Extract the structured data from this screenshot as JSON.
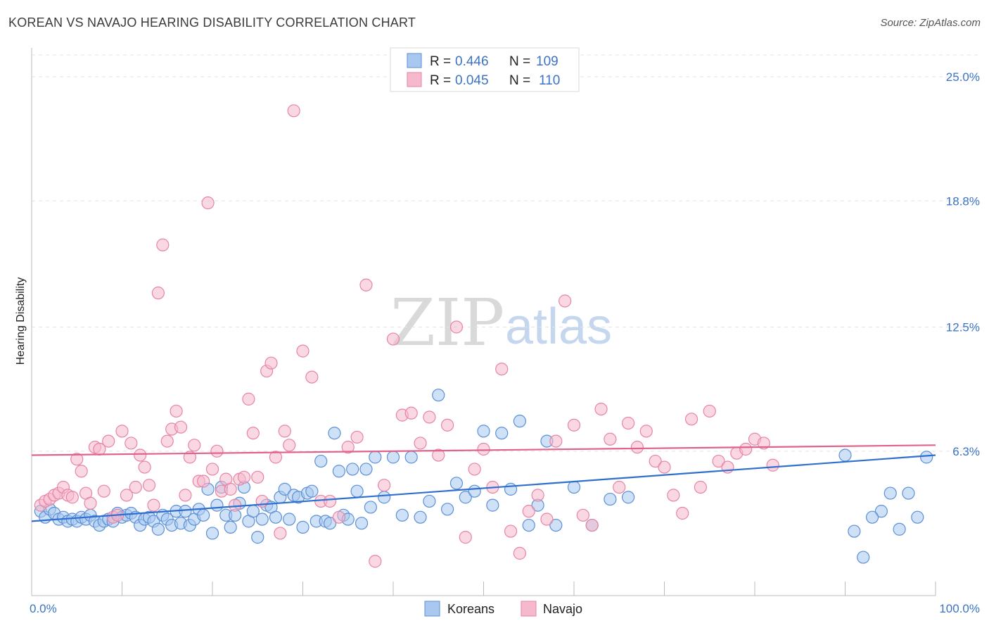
{
  "header": {
    "title": "KOREAN VS NAVAJO HEARING DISABILITY CORRELATION CHART",
    "source": "Source: ZipAtlas.com"
  },
  "watermark": {
    "zip": "ZIP",
    "atlas": "atlas"
  },
  "legend_top": [
    {
      "r_label": "R = ",
      "r_value": "0.446",
      "n_label": "N = ",
      "n_value": "109",
      "color": "#a8c8f0"
    },
    {
      "r_label": "R = ",
      "r_value": "0.045",
      "n_label": "N = ",
      "n_value": "110",
      "color": "#f5b8cc"
    }
  ],
  "colors": {
    "koreans_fill": "#a8c8f0",
    "koreans_stroke": "#5b8fd6",
    "koreans_line": "#2f6fcf",
    "navajo_fill": "#f5b8cc",
    "navajo_stroke": "#e784a4",
    "navajo_line": "#e0628c",
    "tick_label": "#3b73c6"
  },
  "chart_data": {
    "type": "scatter",
    "title": "KOREAN VS NAVAJO HEARING DISABILITY CORRELATION CHART",
    "xlabel": "",
    "ylabel": "Hearing Disability",
    "xlim": [
      0,
      100
    ],
    "ylim": [
      0,
      26.3
    ],
    "x_tick_labels": [
      {
        "value": 0,
        "label": "0.0%"
      },
      {
        "value": 100,
        "label": "100.0%"
      }
    ],
    "y_tick_labels": [
      {
        "value": 6.3,
        "label": "6.3%"
      },
      {
        "value": 12.5,
        "label": "12.5%"
      },
      {
        "value": 18.8,
        "label": "18.8%"
      },
      {
        "value": 25.0,
        "label": "25.0%"
      }
    ],
    "grid": true,
    "legend_position": "top-center",
    "series": [
      {
        "name": "Koreans",
        "trend": [
          [
            0,
            2.8
          ],
          [
            100,
            6.1
          ]
        ],
        "points": [
          [
            1,
            3.3
          ],
          [
            1.5,
            3.0
          ],
          [
            2,
            3.4
          ],
          [
            2.5,
            3.2
          ],
          [
            3,
            2.9
          ],
          [
            3.5,
            3.0
          ],
          [
            4,
            2.8
          ],
          [
            4.5,
            2.9
          ],
          [
            5,
            2.8
          ],
          [
            5.5,
            3.0
          ],
          [
            6,
            2.9
          ],
          [
            6.5,
            3.1
          ],
          [
            7,
            2.8
          ],
          [
            7.5,
            2.6
          ],
          [
            8,
            2.8
          ],
          [
            8.5,
            2.9
          ],
          [
            9,
            2.8
          ],
          [
            9.5,
            3.2
          ],
          [
            10,
            3.0
          ],
          [
            10.5,
            3.1
          ],
          [
            11,
            3.2
          ],
          [
            11.5,
            3.0
          ],
          [
            12,
            2.6
          ],
          [
            12.5,
            2.9
          ],
          [
            13,
            3.0
          ],
          [
            13.5,
            2.8
          ],
          [
            14,
            2.4
          ],
          [
            14.5,
            3.1
          ],
          [
            15,
            2.9
          ],
          [
            15.5,
            2.6
          ],
          [
            16,
            3.3
          ],
          [
            16.5,
            2.7
          ],
          [
            17,
            3.3
          ],
          [
            17.5,
            2.6
          ],
          [
            18,
            2.9
          ],
          [
            18.5,
            3.4
          ],
          [
            19,
            3.1
          ],
          [
            19.5,
            4.4
          ],
          [
            20,
            2.2
          ],
          [
            20.5,
            3.6
          ],
          [
            21,
            4.5
          ],
          [
            21.5,
            3.1
          ],
          [
            22,
            2.5
          ],
          [
            22.5,
            3.1
          ],
          [
            23,
            3.7
          ],
          [
            23.5,
            4.5
          ],
          [
            24,
            2.8
          ],
          [
            24.5,
            3.3
          ],
          [
            25,
            2.0
          ],
          [
            25.5,
            2.9
          ],
          [
            26,
            3.6
          ],
          [
            26.5,
            3.5
          ],
          [
            27,
            3.0
          ],
          [
            27.5,
            4.0
          ],
          [
            28,
            4.4
          ],
          [
            28.5,
            2.9
          ],
          [
            29,
            4.1
          ],
          [
            29.5,
            4.0
          ],
          [
            30,
            2.5
          ],
          [
            30.5,
            4.2
          ],
          [
            31,
            4.3
          ],
          [
            31.5,
            2.8
          ],
          [
            32,
            5.8
          ],
          [
            32.5,
            2.8
          ],
          [
            33,
            2.7
          ],
          [
            33.5,
            7.2
          ],
          [
            34,
            5.3
          ],
          [
            34.5,
            3.1
          ],
          [
            35,
            2.9
          ],
          [
            35.5,
            5.4
          ],
          [
            36,
            4.3
          ],
          [
            36.5,
            2.7
          ],
          [
            37,
            5.4
          ],
          [
            37.5,
            3.5
          ],
          [
            38,
            6.0
          ],
          [
            39,
            4.0
          ],
          [
            40,
            6.0
          ],
          [
            41,
            3.1
          ],
          [
            42,
            6.0
          ],
          [
            43,
            3.0
          ],
          [
            44,
            3.8
          ],
          [
            45,
            9.1
          ],
          [
            46,
            3.4
          ],
          [
            47,
            4.7
          ],
          [
            48,
            4.0
          ],
          [
            49,
            4.3
          ],
          [
            50,
            7.3
          ],
          [
            51,
            3.6
          ],
          [
            52,
            7.2
          ],
          [
            53,
            4.4
          ],
          [
            54,
            7.8
          ],
          [
            55,
            2.6
          ],
          [
            56,
            3.6
          ],
          [
            57,
            6.8
          ],
          [
            58,
            2.6
          ],
          [
            60,
            4.5
          ],
          [
            62,
            2.6
          ],
          [
            64,
            3.9
          ],
          [
            66,
            4.0
          ],
          [
            90,
            6.1
          ],
          [
            92,
            1.0
          ],
          [
            94,
            3.3
          ],
          [
            96,
            2.4
          ],
          [
            98,
            3.0
          ],
          [
            99,
            6.0
          ],
          [
            97,
            4.2
          ],
          [
            95,
            4.2
          ],
          [
            93,
            3.0
          ],
          [
            91,
            2.3
          ]
        ]
      },
      {
        "name": "Navajo",
        "trend": [
          [
            0,
            6.1
          ],
          [
            100,
            6.6
          ]
        ],
        "points": [
          [
            1,
            3.6
          ],
          [
            1.5,
            3.8
          ],
          [
            2,
            3.9
          ],
          [
            2.5,
            4.1
          ],
          [
            3,
            4.2
          ],
          [
            3.5,
            4.5
          ],
          [
            4,
            4.1
          ],
          [
            4.5,
            4.0
          ],
          [
            5,
            5.9
          ],
          [
            5.5,
            5.3
          ],
          [
            6,
            4.2
          ],
          [
            6.5,
            3.7
          ],
          [
            7,
            6.5
          ],
          [
            7.5,
            6.4
          ],
          [
            8,
            4.3
          ],
          [
            8.5,
            6.8
          ],
          [
            9,
            3.0
          ],
          [
            9.5,
            3.1
          ],
          [
            10,
            7.3
          ],
          [
            10.5,
            4.1
          ],
          [
            11,
            6.7
          ],
          [
            11.5,
            4.5
          ],
          [
            12,
            6.1
          ],
          [
            12.5,
            5.5
          ],
          [
            13,
            4.6
          ],
          [
            13.5,
            3.6
          ],
          [
            14,
            14.2
          ],
          [
            14.5,
            16.6
          ],
          [
            15,
            6.8
          ],
          [
            15.5,
            7.4
          ],
          [
            16,
            8.3
          ],
          [
            16.5,
            7.5
          ],
          [
            17,
            4.1
          ],
          [
            17.5,
            6.0
          ],
          [
            18,
            6.6
          ],
          [
            18.5,
            4.8
          ],
          [
            19,
            4.8
          ],
          [
            19.5,
            18.7
          ],
          [
            20,
            5.4
          ],
          [
            20.5,
            6.3
          ],
          [
            21,
            4.3
          ],
          [
            21.5,
            4.9
          ],
          [
            22,
            4.4
          ],
          [
            22.5,
            3.6
          ],
          [
            23,
            4.9
          ],
          [
            23.5,
            5.0
          ],
          [
            24,
            8.9
          ],
          [
            24.5,
            7.2
          ],
          [
            25,
            5.0
          ],
          [
            25.5,
            3.8
          ],
          [
            26,
            10.3
          ],
          [
            26.5,
            10.7
          ],
          [
            27,
            6.0
          ],
          [
            27.5,
            2.2
          ],
          [
            28,
            7.3
          ],
          [
            28.5,
            6.6
          ],
          [
            29,
            23.3
          ],
          [
            30,
            11.3
          ],
          [
            31,
            10.0
          ],
          [
            32,
            3.8
          ],
          [
            33,
            3.8
          ],
          [
            34,
            3.0
          ],
          [
            35,
            6.5
          ],
          [
            36,
            7.0
          ],
          [
            37,
            14.6
          ],
          [
            38,
            0.8
          ],
          [
            39,
            4.6
          ],
          [
            40,
            11.9
          ],
          [
            41,
            8.1
          ],
          [
            42,
            8.2
          ],
          [
            43,
            6.7
          ],
          [
            44,
            8.0
          ],
          [
            45,
            6.1
          ],
          [
            46,
            7.6
          ],
          [
            47,
            12.5
          ],
          [
            48,
            2.0
          ],
          [
            49,
            5.4
          ],
          [
            50,
            6.4
          ],
          [
            51,
            4.5
          ],
          [
            52,
            10.4
          ],
          [
            53,
            2.3
          ],
          [
            54,
            1.2
          ],
          [
            55,
            3.3
          ],
          [
            56,
            4.1
          ],
          [
            57,
            2.9
          ],
          [
            58,
            6.8
          ],
          [
            59,
            13.8
          ],
          [
            60,
            7.6
          ],
          [
            61,
            3.1
          ],
          [
            62,
            2.6
          ],
          [
            63,
            8.4
          ],
          [
            64,
            6.9
          ],
          [
            65,
            4.5
          ],
          [
            66,
            7.7
          ],
          [
            67,
            6.5
          ],
          [
            68,
            7.3
          ],
          [
            69,
            5.8
          ],
          [
            70,
            5.5
          ],
          [
            71,
            4.1
          ],
          [
            72,
            3.2
          ],
          [
            73,
            7.9
          ],
          [
            74,
            4.5
          ],
          [
            75,
            8.3
          ],
          [
            76,
            5.8
          ],
          [
            77,
            5.5
          ],
          [
            78,
            6.2
          ],
          [
            79,
            6.4
          ],
          [
            80,
            6.9
          ],
          [
            81,
            6.7
          ],
          [
            82,
            5.6
          ]
        ]
      }
    ]
  },
  "legend_bottom": [
    {
      "label": "Koreans",
      "color": "#a8c8f0"
    },
    {
      "label": "Navajo",
      "color": "#f5b8cc"
    }
  ]
}
